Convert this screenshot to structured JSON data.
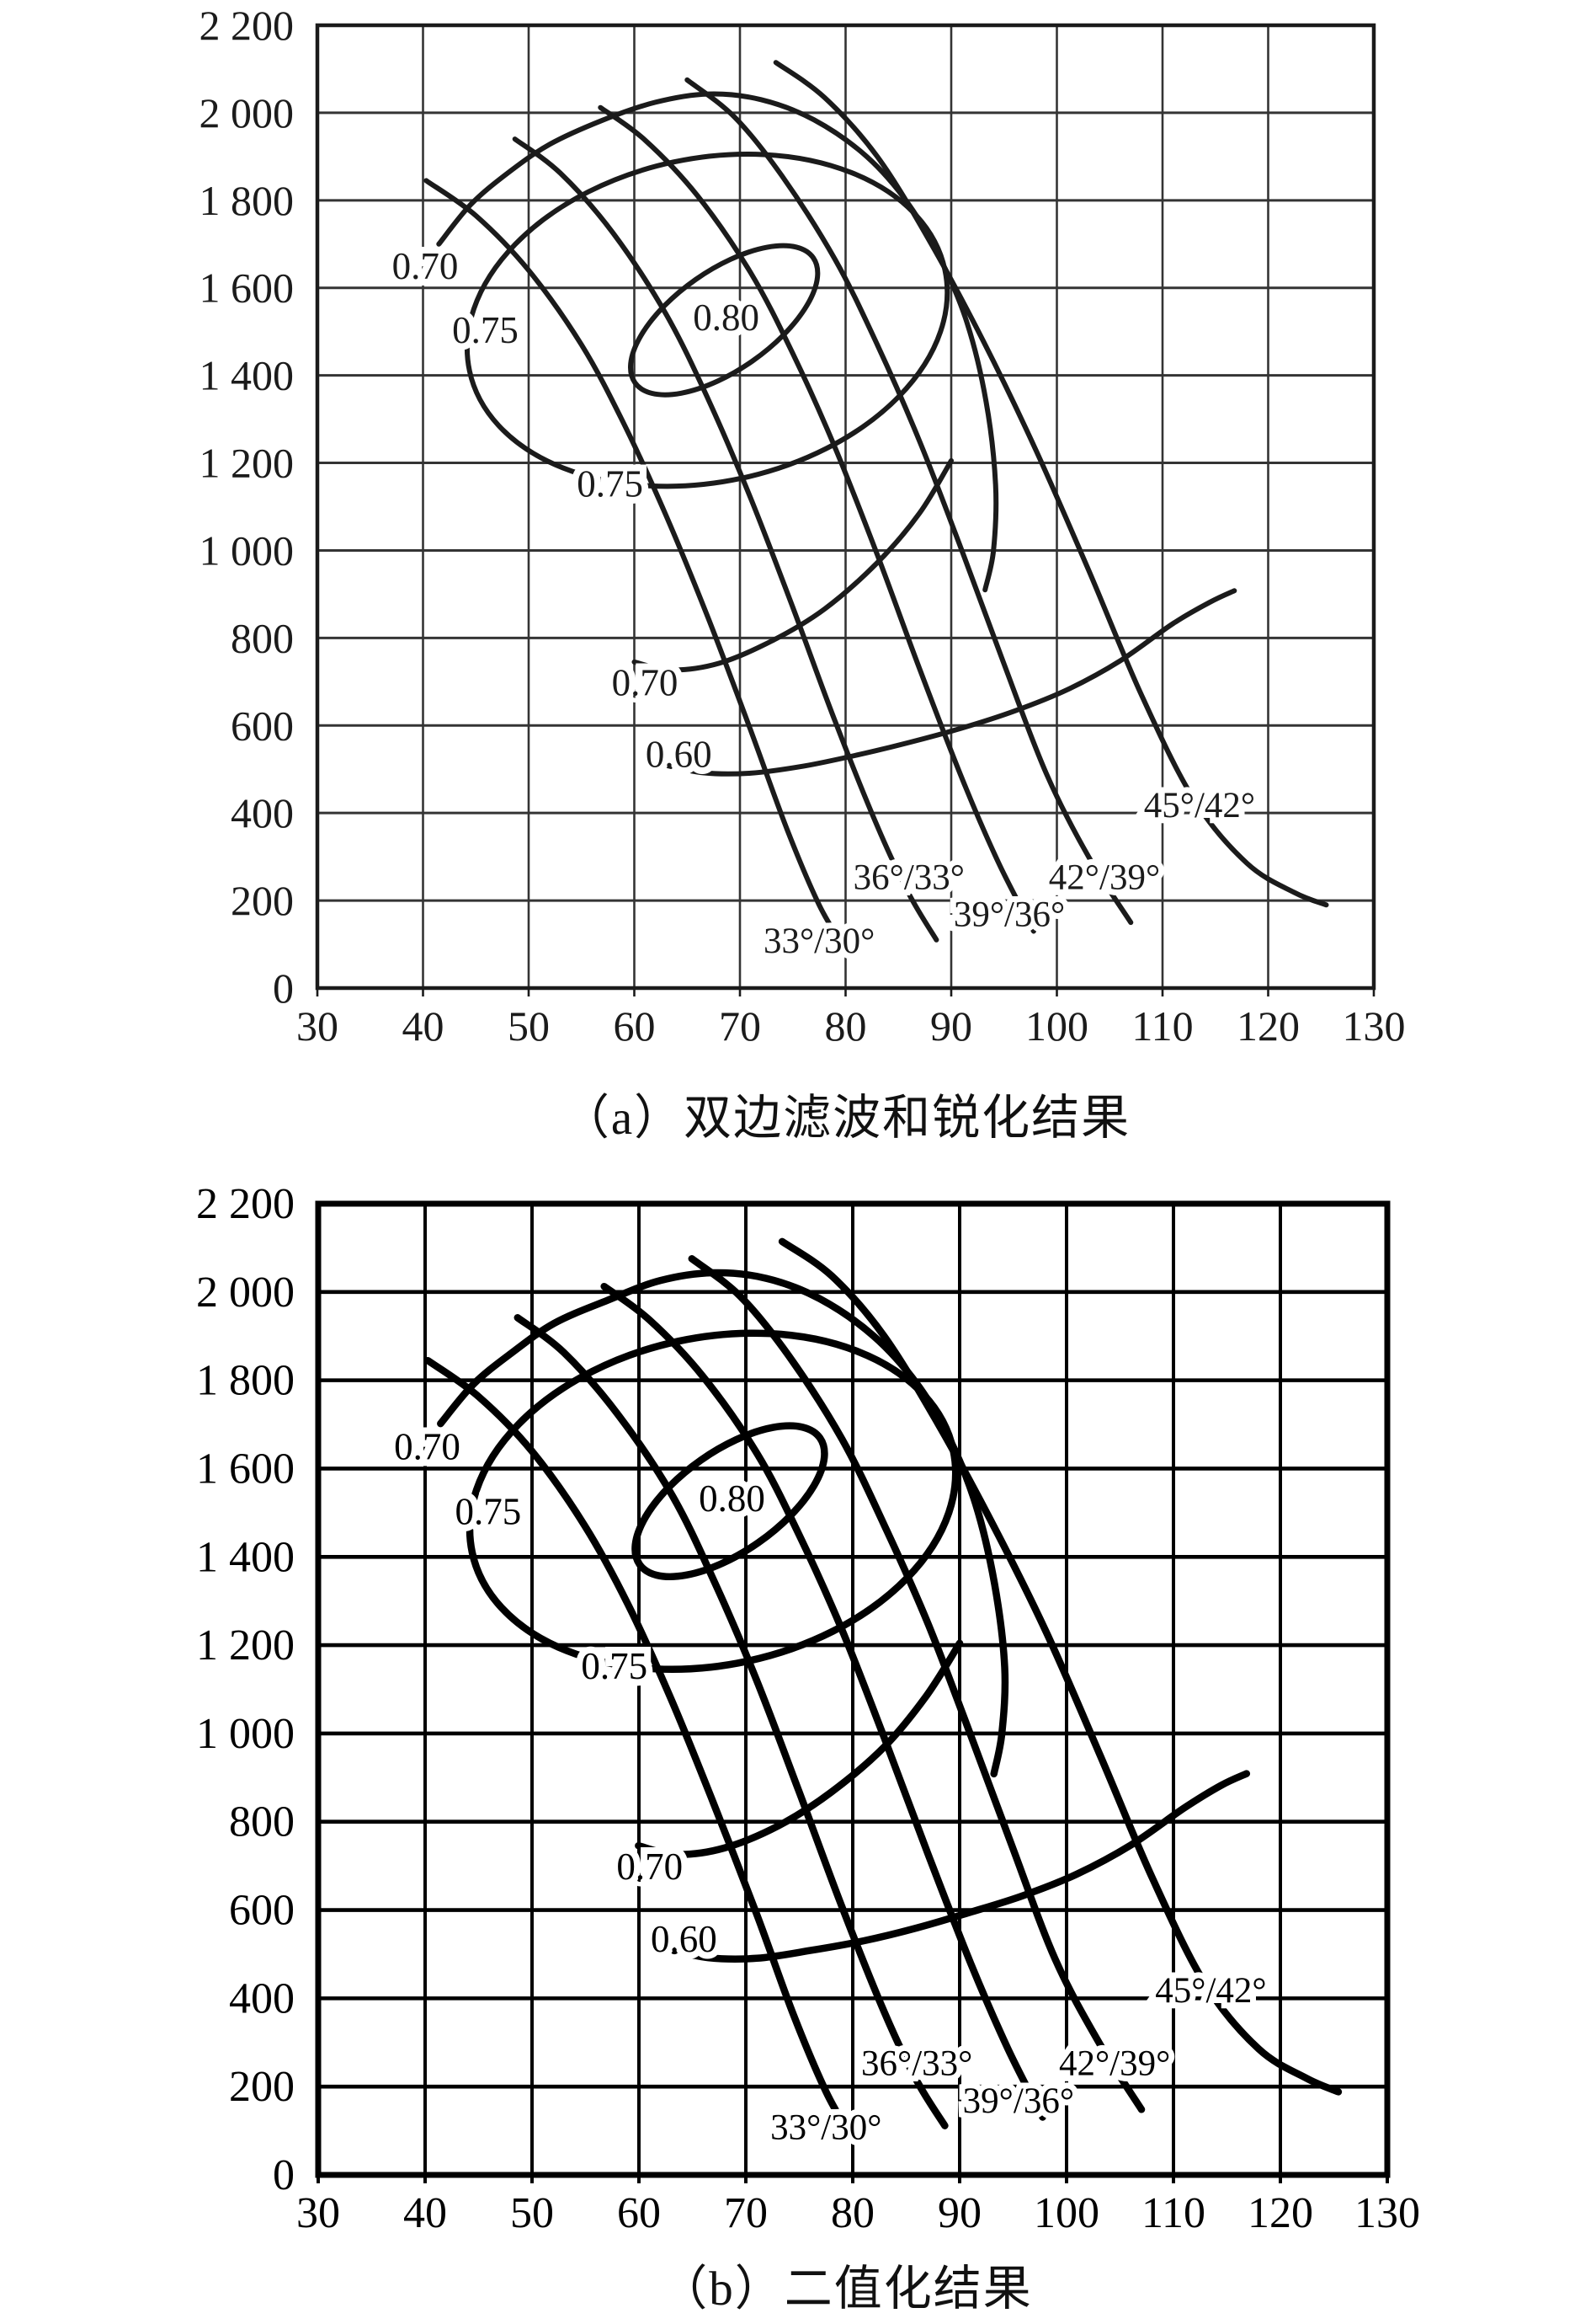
{
  "page": {
    "background": "#ffffff",
    "ink_color": "#1a1a1a",
    "binarized_ink_color": "#000000"
  },
  "chart_data": [
    {
      "id": "a",
      "type": "line",
      "title": "（a）双边滤波和锐化结果",
      "xlabel": "",
      "ylabel": "",
      "xlim": [
        30,
        130
      ],
      "ylim": [
        0,
        2200
      ],
      "grid": "on",
      "x_ticks": [
        30,
        40,
        50,
        60,
        70,
        80,
        90,
        100,
        110,
        120,
        130
      ],
      "y_ticks": [
        0,
        200,
        400,
        600,
        800,
        1000,
        1200,
        1400,
        1600,
        1800,
        2000,
        2200
      ],
      "y_tick_labels": [
        "0",
        "200",
        "400",
        "600",
        "800",
        "1 000",
        "1 200",
        "1 400",
        "1 600",
        "1 800",
        "2 000",
        "2 200"
      ],
      "series": [
        {
          "name": "33°/30°",
          "points": [
            [
              40.3,
              1845
            ],
            [
              45,
              1765
            ],
            [
              50,
              1640
            ],
            [
              55,
              1470
            ],
            [
              59,
              1290
            ],
            [
              63,
              1080
            ],
            [
              67,
              845
            ],
            [
              71,
              590
            ],
            [
              74.5,
              360
            ],
            [
              77.5,
              190
            ],
            [
              79.8,
              95
            ]
          ]
        },
        {
          "name": "36°/33°",
          "points": [
            [
              48.7,
              1940
            ],
            [
              53,
              1862
            ],
            [
              58,
              1725
            ],
            [
              63,
              1540
            ],
            [
              67,
              1345
            ],
            [
              71,
              1120
            ],
            [
              75,
              870
            ],
            [
              79,
              610
            ],
            [
              83,
              370
            ],
            [
              86,
              215
            ],
            [
              88.6,
              110
            ]
          ]
        },
        {
          "name": "39°/36°",
          "points": [
            [
              56.8,
              2012
            ],
            [
              61,
              1938
            ],
            [
              66,
              1810
            ],
            [
              71,
              1635
            ],
            [
              75,
              1450
            ],
            [
              79,
              1235
            ],
            [
              83,
              990
            ],
            [
              87,
              730
            ],
            [
              91,
              480
            ],
            [
              94.5,
              285
            ],
            [
              97.8,
              130
            ]
          ]
        },
        {
          "name": "42°/39°",
          "points": [
            [
              65,
              2075
            ],
            [
              69.5,
              1990
            ],
            [
              74,
              1855
            ],
            [
              79,
              1665
            ],
            [
              83,
              1470
            ],
            [
              87,
              1250
            ],
            [
              91,
              1000
            ],
            [
              95,
              740
            ],
            [
              99,
              490
            ],
            [
              103,
              300
            ],
            [
              107,
              150
            ]
          ]
        },
        {
          "name": "45°/42°",
          "points": [
            [
              73.4,
              2115
            ],
            [
              78,
              2035
            ],
            [
              83,
              1900
            ],
            [
              88,
              1705
            ],
            [
              93,
              1480
            ],
            [
              98,
              1230
            ],
            [
              103,
              955
            ],
            [
              108,
              670
            ],
            [
              113,
              430
            ],
            [
              118,
              285
            ],
            [
              122.5,
              218
            ],
            [
              125.5,
              190
            ]
          ]
        }
      ],
      "series_labels": [
        {
          "text": "33°/30°",
          "x": 77.5,
          "y": 110
        },
        {
          "text": "36°/33°",
          "x": 86.0,
          "y": 255
        },
        {
          "text": "39°/36°",
          "x": 95.5,
          "y": 170
        },
        {
          "text": "42°/39°",
          "x": 104.5,
          "y": 255
        },
        {
          "text": "45°/42°",
          "x": 113.5,
          "y": 420
        }
      ],
      "efficiency_contours": {
        "closed_islands": [
          {
            "value": "0.80",
            "center": [
              68.5,
              1526
            ],
            "a_xunits": 10.3,
            "b_xunits": 4.7,
            "rotation_deg": -35
          },
          {
            "value": "0.75",
            "center": [
              66.9,
              1526
            ],
            "a_xunits": 23.0,
            "b_xunits": 15.3,
            "rotation_deg": -12
          }
        ],
        "open_arcs": [
          {
            "value": "0.70",
            "part": "upper",
            "points": [
              [
                41.5,
                1700
              ],
              [
                44.5,
                1790
              ],
              [
                48,
                1862
              ],
              [
                52,
                1928
              ],
              [
                57,
                1983
              ],
              [
                62,
                2024
              ],
              [
                67,
                2043
              ],
              [
                72,
                2030
              ],
              [
                77,
                1984
              ],
              [
                82,
                1900
              ],
              [
                86,
                1790
              ],
              [
                89,
                1665
              ],
              [
                91.5,
                1520
              ],
              [
                93.3,
                1340
              ],
              [
                94.2,
                1150
              ],
              [
                94,
                1000
              ],
              [
                93.2,
                910
              ]
            ]
          },
          {
            "value": "0.70",
            "part": "lower",
            "points": [
              [
                60,
                745
              ],
              [
                63.5,
                727
              ],
              [
                68,
                742
              ],
              [
                73,
                793
              ],
              [
                78,
                866
              ],
              [
                83,
                972
              ],
              [
                87,
                1085
              ],
              [
                90,
                1205
              ]
            ]
          },
          {
            "value": "0.60",
            "part": "lower",
            "points": [
              [
                62.5,
                512
              ],
              [
                66.5,
                492
              ],
              [
                71,
                491
              ],
              [
                76,
                507
              ],
              [
                81,
                532
              ],
              [
                86,
                561
              ],
              [
                91,
                594
              ],
              [
                96,
                633
              ],
              [
                101,
                682
              ],
              [
                106,
                748
              ],
              [
                111,
                833
              ],
              [
                114.5,
                882
              ],
              [
                116.8,
                908
              ]
            ]
          }
        ],
        "labels": [
          {
            "text": "0.70",
            "x": 40.2,
            "y": 1650
          },
          {
            "text": "0.75",
            "x": 45.9,
            "y": 1503
          },
          {
            "text": "0.80",
            "x": 68.7,
            "y": 1532
          },
          {
            "text": "0.75",
            "x": 57.7,
            "y": 1152
          },
          {
            "text": "0.70",
            "x": 61.0,
            "y": 698
          },
          {
            "text": "0.60",
            "x": 64.2,
            "y": 534
          }
        ]
      },
      "render_style": {
        "ink": "#1b1b1b",
        "grid_color": "#343434",
        "curve_width": 6,
        "grid_width": 2.6,
        "border_width": 4.5,
        "jitter": 0
      }
    },
    {
      "id": "b",
      "type": "line",
      "title": "（b）二值化结果",
      "xlabel": "",
      "ylabel": "",
      "xlim": [
        30,
        130
      ],
      "ylim": [
        0,
        2200
      ],
      "grid": "on",
      "x_ticks": [
        30,
        40,
        50,
        60,
        70,
        80,
        90,
        100,
        110,
        120,
        130
      ],
      "y_ticks": [
        0,
        200,
        400,
        600,
        800,
        1000,
        1200,
        1400,
        1600,
        1800,
        2000,
        2200
      ],
      "y_tick_labels": [
        "0",
        "200",
        "400",
        "600",
        "800",
        "1 000",
        "1 200",
        "1 400",
        "1 600",
        "1 800",
        "2 000",
        "2 200"
      ],
      "note": "Binarized version of chart (a): identical curves, contours and labels, thicker rough black strokes.",
      "series": "same_as_chart_a",
      "series_labels": "same_as_chart_a",
      "efficiency_contours": "same_as_chart_a",
      "render_style": {
        "ink": "#000000",
        "grid_color": "#000000",
        "curve_width": 8.5,
        "grid_width": 4.0,
        "border_width": 7,
        "jitter": 2.0
      }
    }
  ]
}
